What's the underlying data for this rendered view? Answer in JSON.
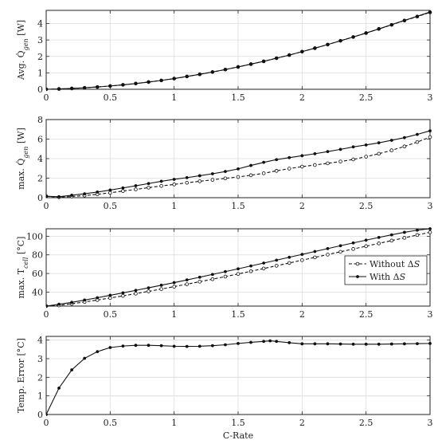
{
  "figure": {
    "xlabel": "C-Rate"
  },
  "chart_data": [
    {
      "type": "line",
      "ylabel_html": "Avg. Q̇<tspan font-style='italic' baseline-shift='sub' font-size='8'>gen</tspan> [W]",
      "ylabel_text": "Avg. Q̇gen [W]",
      "xlim": [
        0,
        3
      ],
      "ylim": [
        0,
        4.8
      ],
      "xticks": [
        0,
        0.5,
        1,
        1.5,
        2,
        2.5,
        3
      ],
      "xticklabels": [
        "0",
        "0.5",
        "1",
        "1.5",
        "2",
        "2.5",
        "3"
      ],
      "yticks": [
        0,
        1,
        2,
        3,
        4
      ],
      "yticklabels": [
        "0",
        "1",
        "2",
        "3",
        "4"
      ],
      "grid": true,
      "series": [
        {
          "name": "Without ΔS",
          "style": "dashed-open",
          "x": [
            0,
            0.1,
            0.2,
            0.3,
            0.4,
            0.5,
            0.6,
            0.7,
            0.8,
            0.9,
            1.0,
            1.1,
            1.2,
            1.3,
            1.4,
            1.5,
            1.6,
            1.7,
            1.8,
            1.9,
            2.0,
            2.1,
            2.2,
            2.3,
            2.4,
            2.5,
            2.6,
            2.7,
            2.8,
            2.9,
            3.0
          ],
          "y": [
            0,
            0.02,
            0.05,
            0.09,
            0.14,
            0.2,
            0.27,
            0.35,
            0.44,
            0.54,
            0.65,
            0.78,
            0.91,
            1.05,
            1.2,
            1.36,
            1.53,
            1.7,
            1.89,
            2.08,
            2.29,
            2.5,
            2.72,
            2.95,
            3.18,
            3.42,
            3.67,
            3.92,
            4.18,
            4.42,
            4.68
          ]
        },
        {
          "name": "With ΔS",
          "style": "solid-filled",
          "x": [
            0,
            0.1,
            0.2,
            0.3,
            0.4,
            0.5,
            0.6,
            0.7,
            0.8,
            0.9,
            1.0,
            1.1,
            1.2,
            1.3,
            1.4,
            1.5,
            1.6,
            1.7,
            1.8,
            1.9,
            2.0,
            2.1,
            2.2,
            2.3,
            2.4,
            2.5,
            2.6,
            2.7,
            2.8,
            2.9,
            3.0
          ],
          "y": [
            0,
            0.02,
            0.05,
            0.09,
            0.14,
            0.2,
            0.27,
            0.35,
            0.44,
            0.54,
            0.65,
            0.78,
            0.91,
            1.05,
            1.2,
            1.36,
            1.53,
            1.7,
            1.89,
            2.08,
            2.29,
            2.5,
            2.72,
            2.95,
            3.18,
            3.42,
            3.67,
            3.93,
            4.19,
            4.44,
            4.7
          ]
        }
      ]
    },
    {
      "type": "line",
      "ylabel_html": "max. Q̇<tspan font-style='italic' baseline-shift='sub' font-size='8'>gen</tspan> [W]",
      "ylabel_text": "max. Q̇gen [W]",
      "xlim": [
        0,
        3
      ],
      "ylim": [
        0,
        8
      ],
      "xticks": [
        0,
        0.5,
        1,
        1.5,
        2,
        2.5,
        3
      ],
      "xticklabels": [
        "0",
        "0.5",
        "1",
        "1.5",
        "2",
        "2.5",
        "3"
      ],
      "yticks": [
        0,
        2,
        4,
        6,
        8
      ],
      "yticklabels": [
        "0",
        "2",
        "4",
        "6",
        "8"
      ],
      "grid": true,
      "series": [
        {
          "name": "Without ΔS",
          "style": "dashed-open",
          "x": [
            0,
            0.1,
            0.2,
            0.3,
            0.4,
            0.5,
            0.6,
            0.7,
            0.8,
            0.9,
            1.0,
            1.1,
            1.2,
            1.3,
            1.4,
            1.5,
            1.6,
            1.7,
            1.8,
            1.9,
            2.0,
            2.1,
            2.2,
            2.3,
            2.4,
            2.5,
            2.6,
            2.7,
            2.8,
            2.9,
            3.0
          ],
          "y": [
            0.15,
            0.05,
            0.12,
            0.22,
            0.35,
            0.5,
            0.68,
            0.85,
            1.03,
            1.2,
            1.36,
            1.53,
            1.68,
            1.83,
            1.98,
            2.12,
            2.3,
            2.5,
            2.75,
            2.98,
            3.18,
            3.35,
            3.52,
            3.7,
            3.92,
            4.2,
            4.5,
            4.85,
            5.25,
            5.7,
            6.2
          ]
        },
        {
          "name": "With ΔS",
          "style": "solid-filled",
          "x": [
            0,
            0.1,
            0.2,
            0.3,
            0.4,
            0.5,
            0.6,
            0.7,
            0.8,
            0.9,
            1.0,
            1.1,
            1.2,
            1.3,
            1.4,
            1.5,
            1.6,
            1.7,
            1.8,
            1.9,
            2.0,
            2.1,
            2.2,
            2.3,
            2.4,
            2.5,
            2.6,
            2.7,
            2.8,
            2.9,
            3.0
          ],
          "y": [
            0.15,
            0.1,
            0.25,
            0.4,
            0.58,
            0.78,
            1.0,
            1.22,
            1.45,
            1.68,
            1.88,
            2.05,
            2.25,
            2.45,
            2.68,
            2.95,
            3.3,
            3.62,
            3.9,
            4.1,
            4.3,
            4.5,
            4.72,
            4.95,
            5.2,
            5.4,
            5.62,
            5.88,
            6.15,
            6.48,
            6.85
          ]
        }
      ]
    },
    {
      "type": "line",
      "ylabel_html": "max. T<tspan font-style='italic' baseline-shift='sub' font-size='8'>cell</tspan> [°C]",
      "ylabel_text": "max. Tcell [°C]",
      "xlim": [
        0,
        3
      ],
      "ylim": [
        25,
        108
      ],
      "xticks": [
        0,
        0.5,
        1,
        1.5,
        2,
        2.5,
        3
      ],
      "xticklabels": [
        "0",
        "0.5",
        "1",
        "1.5",
        "2",
        "2.5",
        "3"
      ],
      "yticks": [
        40,
        60,
        80,
        100
      ],
      "yticklabels": [
        "40",
        "60",
        "80",
        "100"
      ],
      "grid": true,
      "legend": {
        "position": "right-middle",
        "entries": [
          "Without ΔS",
          "With ΔS"
        ],
        "labels_html": [
          "Without Δ<tspan font-style='italic'>S</tspan>",
          "With Δ<tspan font-style='italic'>S</tspan>"
        ]
      },
      "series": [
        {
          "name": "Without ΔS",
          "style": "dashed-open",
          "x": [
            0,
            0.1,
            0.2,
            0.3,
            0.4,
            0.5,
            0.6,
            0.7,
            0.8,
            0.9,
            1.0,
            1.1,
            1.2,
            1.3,
            1.4,
            1.5,
            1.6,
            1.7,
            1.8,
            1.9,
            2.0,
            2.1,
            2.2,
            2.3,
            2.4,
            2.5,
            2.6,
            2.7,
            2.8,
            2.9,
            3.0
          ],
          "y": [
            25,
            25.8,
            27.5,
            29.5,
            31.5,
            33.7,
            36.0,
            38.4,
            40.8,
            43.3,
            45.9,
            48.5,
            51.2,
            53.9,
            56.7,
            59.5,
            62.4,
            65.3,
            68.3,
            71.3,
            74.3,
            77.3,
            80.3,
            83.3,
            86.3,
            89.3,
            92.3,
            95.3,
            98.3,
            101.3,
            104.3
          ]
        },
        {
          "name": "With ΔS",
          "style": "solid-filled",
          "x": [
            0,
            0.1,
            0.2,
            0.3,
            0.4,
            0.5,
            0.6,
            0.7,
            0.8,
            0.9,
            1.0,
            1.1,
            1.2,
            1.3,
            1.4,
            1.5,
            1.6,
            1.7,
            1.8,
            1.9,
            2.0,
            2.1,
            2.2,
            2.3,
            2.4,
            2.5,
            2.6,
            2.7,
            2.8,
            2.9,
            3.0
          ],
          "y": [
            25,
            27.0,
            29.0,
            31.5,
            34.0,
            36.6,
            39.2,
            41.9,
            44.6,
            47.4,
            50.2,
            53.1,
            56.0,
            59.0,
            62.0,
            65.0,
            68.1,
            71.2,
            74.3,
            77.4,
            80.5,
            83.6,
            86.7,
            89.8,
            92.8,
            95.8,
            98.7,
            101.5,
            104.2,
            106.5,
            108.0
          ]
        }
      ]
    },
    {
      "type": "line",
      "ylabel_html": "Temp. Error [°C]",
      "ylabel_text": "Temp. Error [°C]",
      "xlim": [
        0,
        3
      ],
      "ylim": [
        0,
        4.2
      ],
      "xticks": [
        0,
        0.5,
        1,
        1.5,
        2,
        2.5,
        3
      ],
      "xticklabels": [
        "0",
        "0.5",
        "1",
        "1.5",
        "2",
        "2.5",
        "3"
      ],
      "yticks": [
        0,
        1,
        2,
        3,
        4
      ],
      "yticklabels": [
        "0",
        "1",
        "2",
        "3",
        "4"
      ],
      "grid": true,
      "series": [
        {
          "name": "",
          "style": "solid-filled",
          "x": [
            0,
            0.1,
            0.2,
            0.3,
            0.4,
            0.5,
            0.6,
            0.7,
            0.8,
            0.9,
            1.0,
            1.1,
            1.2,
            1.3,
            1.4,
            1.5,
            1.6,
            1.7,
            1.75,
            1.8,
            1.9,
            2.0,
            2.1,
            2.2,
            2.3,
            2.4,
            2.5,
            2.6,
            2.7,
            2.8,
            2.9,
            3.0
          ],
          "y": [
            0.0,
            1.42,
            2.4,
            3.02,
            3.38,
            3.6,
            3.68,
            3.72,
            3.72,
            3.7,
            3.67,
            3.66,
            3.67,
            3.7,
            3.75,
            3.82,
            3.88,
            3.93,
            3.96,
            3.93,
            3.86,
            3.8,
            3.8,
            3.8,
            3.79,
            3.78,
            3.78,
            3.78,
            3.79,
            3.8,
            3.81,
            3.82
          ]
        }
      ]
    }
  ]
}
